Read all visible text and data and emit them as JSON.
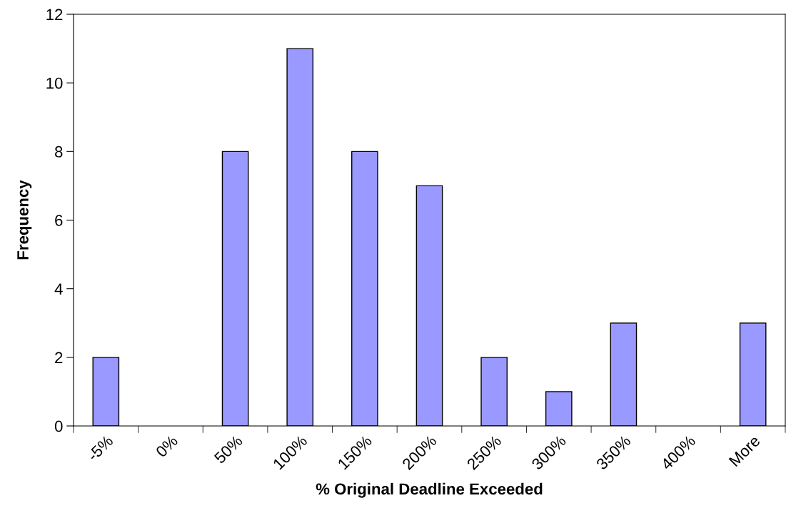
{
  "chart_data": {
    "type": "bar",
    "xlabel": "% Original Deadline Exceeded",
    "ylabel": "Frequency",
    "categories": [
      "-5%",
      "0%",
      "50%",
      "100%",
      "150%",
      "200%",
      "250%",
      "300%",
      "350%",
      "400%",
      "More"
    ],
    "values": [
      2,
      0,
      8,
      11,
      8,
      7,
      2,
      1,
      3,
      0,
      3
    ],
    "color": "#9999ff",
    "ylim": [
      0,
      12
    ],
    "yticks": [
      0,
      2,
      4,
      6,
      8,
      10,
      12
    ],
    "grid": false
  }
}
